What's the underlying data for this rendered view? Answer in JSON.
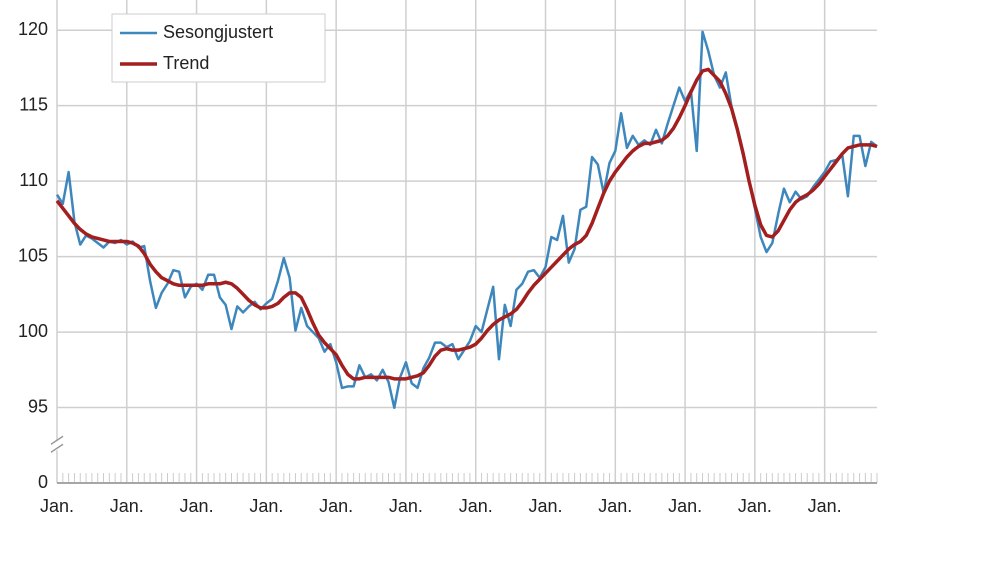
{
  "chart_data": {
    "type": "line",
    "categories": [
      "Jan.",
      null,
      null,
      null,
      null,
      null,
      null,
      null,
      null,
      null,
      null,
      null,
      "Jan.",
      null,
      null,
      null,
      null,
      null,
      null,
      null,
      null,
      null,
      null,
      null,
      "Jan.",
      null,
      null,
      null,
      null,
      null,
      null,
      null,
      null,
      null,
      null,
      null,
      "Jan.",
      null,
      null,
      null,
      null,
      null,
      null,
      null,
      null,
      null,
      null,
      null,
      "Jan.",
      null,
      null,
      null,
      null,
      null,
      null,
      null,
      null,
      null,
      null,
      null,
      "Jan.",
      null,
      null,
      null,
      null,
      null,
      null,
      null,
      null,
      null,
      null,
      null,
      "Jan.",
      null,
      null,
      null,
      null,
      null,
      null,
      null,
      null,
      null,
      null,
      null,
      "Jan.",
      null,
      null,
      null,
      null,
      null,
      null,
      null,
      null,
      null,
      null,
      null,
      "Jan.",
      null,
      null,
      null,
      null,
      null,
      null,
      null,
      null,
      null,
      null,
      null,
      "Jan.",
      null,
      null,
      null,
      null,
      null,
      null,
      null,
      null,
      null,
      null,
      null,
      "Jan.",
      null,
      null,
      null,
      null,
      null,
      null,
      null,
      null,
      null,
      null,
      null,
      "Jan.",
      null,
      null,
      null,
      null,
      null,
      null,
      null,
      null,
      null
    ],
    "series": [
      {
        "name": "Sesongjustert",
        "color": "#3d87bd",
        "values": [
          109.1,
          108.5,
          110.6,
          107.3,
          105.8,
          106.4,
          106.2,
          105.9,
          105.6,
          106.0,
          105.9,
          106.1,
          105.8,
          106.0,
          105.6,
          105.7,
          103.4,
          101.6,
          102.6,
          103.2,
          104.1,
          104.0,
          102.3,
          103.0,
          103.2,
          102.8,
          103.8,
          103.8,
          102.3,
          101.8,
          100.2,
          101.7,
          101.3,
          101.7,
          102.0,
          101.5,
          101.9,
          102.2,
          103.4,
          104.9,
          103.6,
          100.1,
          101.6,
          100.4,
          100.0,
          99.6,
          98.7,
          99.2,
          98.0,
          96.3,
          96.4,
          96.4,
          97.8,
          97.0,
          97.2,
          96.8,
          97.5,
          96.7,
          94.7,
          97.0,
          98.0,
          96.6,
          96.3,
          97.6,
          98.3,
          99.3,
          99.3,
          99.0,
          99.2,
          98.2,
          98.8,
          99.4,
          100.4,
          100.0,
          101.5,
          103.0,
          98.2,
          101.8,
          100.4,
          102.8,
          103.2,
          104.0,
          104.1,
          103.6,
          104.3,
          106.3,
          106.1,
          107.7,
          104.6,
          105.5,
          108.1,
          108.3,
          111.6,
          111.1,
          109.2,
          111.2,
          112.0,
          114.5,
          112.2,
          113.0,
          112.4,
          112.7,
          112.4,
          113.4,
          112.5,
          113.8,
          115.0,
          116.2,
          115.3,
          116.0,
          112.0,
          119.9,
          118.6,
          117.0,
          116.2,
          117.2,
          114.9,
          113.5,
          111.7,
          110.0,
          108.2,
          106.3,
          105.3,
          105.9,
          107.8,
          109.5,
          108.6,
          109.3,
          108.8,
          109.0,
          109.6,
          110.1,
          110.6,
          111.3,
          111.4,
          111.8,
          109.0,
          113.0,
          113.0,
          111.0,
          112.6,
          112.3
        ]
      },
      {
        "name": "Trend",
        "color": "#a31f1f",
        "values": [
          108.7,
          108.2,
          107.7,
          107.2,
          106.8,
          106.5,
          106.3,
          106.2,
          106.1,
          106.0,
          106.0,
          106.0,
          106.0,
          105.9,
          105.7,
          105.2,
          104.5,
          104.0,
          103.6,
          103.4,
          103.2,
          103.1,
          103.1,
          103.1,
          103.1,
          103.1,
          103.2,
          103.2,
          103.2,
          103.3,
          103.2,
          102.9,
          102.5,
          102.1,
          101.8,
          101.6,
          101.6,
          101.7,
          101.9,
          102.3,
          102.6,
          102.6,
          102.3,
          101.5,
          100.6,
          99.8,
          99.3,
          98.9,
          98.5,
          97.8,
          97.2,
          96.9,
          96.9,
          97.0,
          97.0,
          97.0,
          97.0,
          97.0,
          96.9,
          96.9,
          96.9,
          97.0,
          97.1,
          97.3,
          97.8,
          98.4,
          98.8,
          98.9,
          98.8,
          98.8,
          98.9,
          99.0,
          99.2,
          99.6,
          100.1,
          100.5,
          100.8,
          101.0,
          101.2,
          101.5,
          102.0,
          102.6,
          103.1,
          103.5,
          103.9,
          104.3,
          104.7,
          105.1,
          105.5,
          105.8,
          106.0,
          106.4,
          107.2,
          108.2,
          109.2,
          110.0,
          110.6,
          111.1,
          111.6,
          112.0,
          112.3,
          112.5,
          112.5,
          112.6,
          112.7,
          113.0,
          113.5,
          114.2,
          115.0,
          115.9,
          116.7,
          117.3,
          117.4,
          117.0,
          116.6,
          115.8,
          114.8,
          113.4,
          111.8,
          110.0,
          108.4,
          107.1,
          106.4,
          106.3,
          106.7,
          107.4,
          108.1,
          108.6,
          108.9,
          109.1,
          109.4,
          109.8,
          110.3,
          110.8,
          111.3,
          111.8,
          112.2,
          112.3,
          112.4,
          112.4,
          112.4,
          112.3
        ]
      }
    ],
    "ylim": [
      0,
      122
    ],
    "yticks": [
      0,
      95,
      100,
      105,
      110,
      115,
      120
    ],
    "y_axis_break": true,
    "grid": true,
    "legend": "upper left"
  }
}
